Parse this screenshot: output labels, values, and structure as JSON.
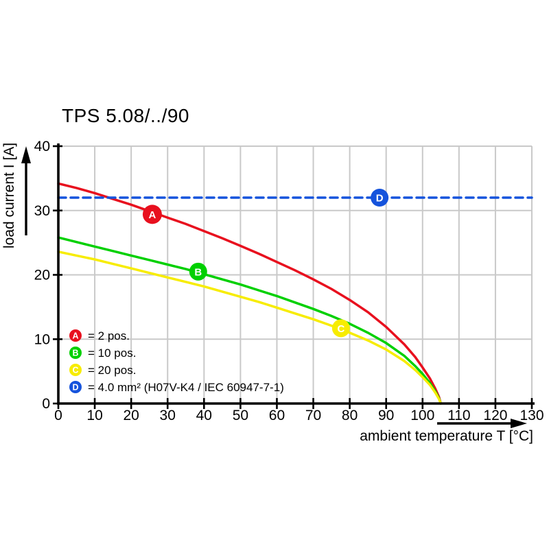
{
  "title": "TPS 5.08/../90",
  "chart_data": {
    "type": "line",
    "title": "TPS 5.08/../90",
    "xlabel": "ambient temperature T [°C]",
    "ylabel": "load current I [A]",
    "xlim": [
      0,
      130
    ],
    "ylim": [
      0,
      40
    ],
    "x_ticks": [
      0,
      10,
      20,
      30,
      40,
      50,
      60,
      70,
      80,
      90,
      100,
      110,
      120,
      130
    ],
    "y_ticks": [
      0,
      10,
      20,
      30,
      40
    ],
    "grid": true,
    "legend_position": "bottom-left-inside",
    "colors": {
      "grid": "#c9c9c9",
      "axis": "#000000",
      "text": "#000000",
      "background": "#ffffff",
      "marker_letter": "#ffffff"
    },
    "series": [
      {
        "name": "A",
        "legend_label": "= 2 pos.",
        "color": "#e8101e",
        "line_style": "solid",
        "marker": {
          "letter": "A",
          "x": 25.8,
          "y": 29.4,
          "radius": 14
        },
        "points": [
          [
            0,
            34.2
          ],
          [
            5,
            33.5
          ],
          [
            10,
            32.7
          ],
          [
            15,
            31.8
          ],
          [
            20,
            30.9
          ],
          [
            25,
            29.9
          ],
          [
            30,
            28.9
          ],
          [
            35,
            27.9
          ],
          [
            40,
            26.8
          ],
          [
            45,
            25.7
          ],
          [
            50,
            24.5
          ],
          [
            55,
            23.3
          ],
          [
            60,
            22.0
          ],
          [
            65,
            20.7
          ],
          [
            70,
            19.3
          ],
          [
            75,
            17.8
          ],
          [
            80,
            16.1
          ],
          [
            85,
            14.2
          ],
          [
            90,
            11.9
          ],
          [
            95,
            9.2
          ],
          [
            98,
            7.2
          ],
          [
            100,
            5.6
          ],
          [
            102,
            3.9
          ],
          [
            103.5,
            2.3
          ],
          [
            104.5,
            1.0
          ],
          [
            105,
            0
          ]
        ]
      },
      {
        "name": "B",
        "legend_label": "= 10 pos.",
        "color": "#00d000",
        "line_style": "solid",
        "marker": {
          "letter": "B",
          "x": 38.4,
          "y": 20.5,
          "radius": 13
        },
        "points": [
          [
            0,
            25.8
          ],
          [
            5,
            25.1
          ],
          [
            10,
            24.4
          ],
          [
            15,
            23.7
          ],
          [
            20,
            23.0
          ],
          [
            25,
            22.3
          ],
          [
            30,
            21.6
          ],
          [
            35,
            20.9
          ],
          [
            40,
            20.1
          ],
          [
            45,
            19.3
          ],
          [
            50,
            18.5
          ],
          [
            55,
            17.6
          ],
          [
            60,
            16.7
          ],
          [
            65,
            15.7
          ],
          [
            70,
            14.7
          ],
          [
            75,
            13.6
          ],
          [
            80,
            12.4
          ],
          [
            85,
            11.0
          ],
          [
            90,
            9.4
          ],
          [
            95,
            7.4
          ],
          [
            98,
            5.8
          ],
          [
            100,
            4.6
          ],
          [
            102,
            3.2
          ],
          [
            103.5,
            1.9
          ],
          [
            104.5,
            0.8
          ],
          [
            105,
            0
          ]
        ]
      },
      {
        "name": "C",
        "legend_label": "= 20 pos.",
        "color": "#f7ec00",
        "line_style": "solid",
        "marker": {
          "letter": "C",
          "x": 77.6,
          "y": 11.7,
          "radius": 13
        },
        "points": [
          [
            0,
            23.6
          ],
          [
            5,
            23.0
          ],
          [
            10,
            22.4
          ],
          [
            15,
            21.7
          ],
          [
            20,
            21.0
          ],
          [
            25,
            20.3
          ],
          [
            30,
            19.6
          ],
          [
            35,
            18.9
          ],
          [
            40,
            18.2
          ],
          [
            45,
            17.4
          ],
          [
            50,
            16.6
          ],
          [
            55,
            15.8
          ],
          [
            60,
            14.9
          ],
          [
            65,
            14.0
          ],
          [
            70,
            13.1
          ],
          [
            75,
            12.1
          ],
          [
            80,
            11.0
          ],
          [
            85,
            9.8
          ],
          [
            90,
            8.4
          ],
          [
            95,
            6.6
          ],
          [
            98,
            5.2
          ],
          [
            100,
            4.1
          ],
          [
            102,
            2.9
          ],
          [
            103.5,
            1.7
          ],
          [
            104.5,
            0.7
          ],
          [
            105,
            0
          ]
        ]
      },
      {
        "name": "D",
        "legend_label": "= 4.0 mm² (H07V-K4 / IEC 60947-7-1)",
        "color": "#1553dc",
        "line_style": "dashed",
        "marker": {
          "letter": "D",
          "x": 88.2,
          "y": 32,
          "radius": 13
        },
        "points": [
          [
            0,
            32
          ],
          [
            130,
            32
          ]
        ]
      }
    ]
  }
}
